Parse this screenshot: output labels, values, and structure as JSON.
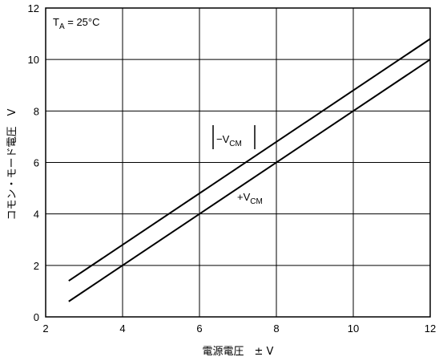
{
  "chart_data": {
    "type": "line",
    "xlabel": "電源電圧　± V",
    "ylabel": "コモン・モード電圧　V",
    "xlim": [
      2,
      12
    ],
    "ylim": [
      0,
      12
    ],
    "xticks": [
      "2",
      "4",
      "6",
      "8",
      "10",
      "12"
    ],
    "yticks": [
      "0",
      "2",
      "4",
      "6",
      "8",
      "10",
      "12"
    ],
    "grid": true,
    "condition": {
      "main": "T",
      "sub": "A",
      "rest": " = 25°C"
    },
    "series": [
      {
        "name": "|−V_CM|",
        "label_main": "−V",
        "label_sub": "CM",
        "x": [
          2.6,
          12
        ],
        "y": [
          1.4,
          10.8
        ],
        "color": "#000000"
      },
      {
        "name": "+V_CM",
        "label_main": "+V",
        "label_sub": "CM",
        "x": [
          2.6,
          12
        ],
        "y": [
          0.6,
          10.0
        ],
        "color": "#000000"
      }
    ]
  }
}
